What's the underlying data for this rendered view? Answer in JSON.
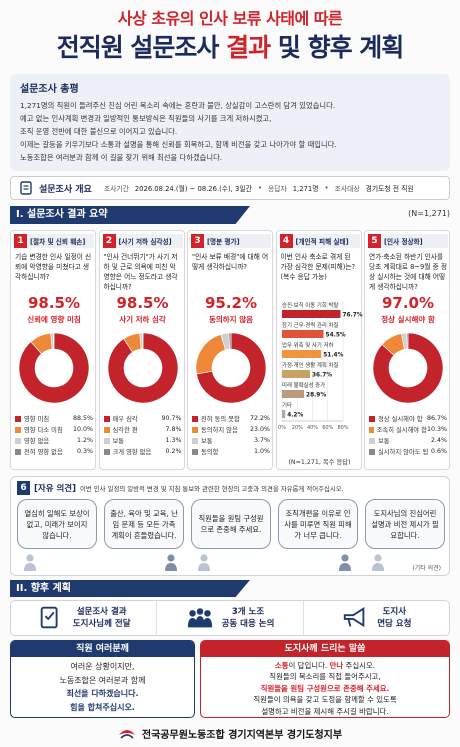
{
  "header": {
    "kicker": "사상 초유의 인사 보류 사태에 따른",
    "title": [
      {
        "text": "전직원 설문조사 ",
        "color": "#1c2a5c"
      },
      {
        "text": "결과",
        "color": "#d2232a"
      },
      {
        "text": " 및 ",
        "color": "#1c2a5c"
      },
      {
        "text": "향후 계획",
        "color": "#1c2a5c"
      }
    ]
  },
  "summary": {
    "title": "설문조사 총평",
    "lines": [
      "1,271명의 직원이 들려주신 진심 어린 목소리 속에는 혼란과 불안, 상실감이 고스란히 담겨 있었습니다.",
      "예고 없는 인사계획 변경과 일방적인 통보방식은 직원들의 사기를 크게 저하시켰고,",
      "조직 운영 전반에 대한 불신으로 이어지고 있습니다.",
      "이제는 갈등을 키우기보다 소통과 설명을 통해 신뢰를 회복하고, 함께 비전을 갖고 나아가야 할 때입니다.",
      "노동조합은 여러분과 함께 이 길을 찾기 위해 최선을 다하겠습니다."
    ]
  },
  "overview": {
    "title": "설문조사 개요",
    "items": [
      {
        "label": "조사기간",
        "value": "2026.08.24.(월) ~ 08.26.(수), 3일간"
      },
      {
        "label": "응답자",
        "value": "1,271명"
      },
      {
        "label": "조사대상",
        "value": "경기도청 전 직원"
      }
    ]
  },
  "section1": {
    "title": "I. 설문조사 결과 요약",
    "note": "(N=1,271)"
  },
  "chart_data": [
    {
      "type": "pie",
      "number": 1,
      "title": "[절차 및 신뢰 훼손]",
      "subtitle": "기습 변경한 인사 일정이 신뢰에 악영향을 미쳤다고 생각하십니까?",
      "highlight": "98.5%",
      "highlight_caption": "신뢰에 영향 미침",
      "categories": [
        "영향 미침",
        "영향 다소 미침",
        "영향 없음",
        "전혀 영향 없음"
      ],
      "values": [
        88.5,
        10.0,
        1.2,
        0.3
      ],
      "value_labels": [
        "88.5%",
        "10.0%",
        "1.2%",
        "0.3%"
      ],
      "colors": [
        "#c3232b",
        "#f0883a",
        "#cfcfcf",
        "#8a8a8a"
      ]
    },
    {
      "type": "pie",
      "number": 2,
      "title": "[사기 저하 심각성]",
      "subtitle": "\"인사 건너뛰기\"가 사기 저하 및 근로 의욕에 미친 악영향은 어느 정도라고 생각하십니까?",
      "highlight": "98.5%",
      "highlight_caption": "사기 저하 심각",
      "categories": [
        "매우 심각",
        "심각한 편",
        "보통",
        "크게 영향 없음"
      ],
      "values": [
        90.7,
        7.8,
        1.3,
        0.2
      ],
      "value_labels": [
        "90.7%",
        "7.8%",
        "1.3%",
        "0.2%"
      ],
      "colors": [
        "#c3232b",
        "#f0883a",
        "#cfcfcf",
        "#8a8a8a"
      ]
    },
    {
      "type": "pie",
      "number": 3,
      "title": "[명분 평가]",
      "subtitle": "\"인사 보류 배경\"에 대해 어떻게 생각하십니까?",
      "highlight": "95.2%",
      "highlight_caption": "동의하지 않음",
      "categories": [
        "전혀 동의 못함",
        "동의하지 않음",
        "보통",
        "동의함"
      ],
      "values": [
        72.2,
        23.0,
        3.7,
        1.0
      ],
      "value_labels": [
        "72.2%",
        "23.0%",
        "3.7%",
        "1.0%"
      ],
      "colors": [
        "#c3232b",
        "#f0883a",
        "#cfcfcf",
        "#8a8a8a"
      ]
    },
    {
      "type": "bar",
      "number": 4,
      "title": "[개인적 피해 실태]",
      "subtitle": "이번 인사 축소로 겪게 된 가장 심각한 문제(피해)는? (복수 응답 가능)",
      "categories": [
        "승진·보직 이동 기회 박탈",
        "장기 근무·경력 관리 차질",
        "업무 위축 및 사기 저하",
        "가정·개인 생활 계획 차질",
        "미래 불확실성 증가",
        "기타"
      ],
      "values": [
        76.7,
        54.5,
        51.4,
        36.7,
        28.9,
        4.2
      ],
      "value_labels": [
        "76.7%",
        "54.5%",
        "51.4%",
        "36.7%",
        "28.9%",
        "4.2%"
      ],
      "colors": [
        "#c3232b",
        "#e0553a",
        "#f0953e",
        "#c9a066",
        "#b89a7c",
        "#a8a8a8"
      ],
      "xlim": [
        0,
        80
      ],
      "xticks": [
        {
          "value": 0,
          "label": "0%"
        },
        {
          "value": 20,
          "label": "20%"
        },
        {
          "value": 40,
          "label": "40%"
        },
        {
          "value": 60,
          "label": "60%"
        },
        {
          "value": 80,
          "label": "80%"
        }
      ],
      "grid": true,
      "note": "(N=1,271, 복수 응답)"
    },
    {
      "type": "pie",
      "number": 5,
      "title": "[인사 정상화]",
      "subtitle": "연가·축소된 하반기 인사를 당초 계획대로 8~9월 중 정상 실시하는 것에 대해 어떻게 생각하십니까?",
      "highlight": "97.0%",
      "highlight_caption": "정상 실시해야 함",
      "categories": [
        "정상 실시해야 함",
        "조속히 실시해야 함",
        "보통",
        "실시하지 않아도 됨"
      ],
      "values": [
        86.7,
        10.3,
        2.4,
        0.6
      ],
      "value_labels": [
        "86.7%",
        "10.3%",
        "2.4%",
        "0.6%"
      ],
      "colors": [
        "#c3232b",
        "#f0883a",
        "#cfcfcf",
        "#8a8a8a"
      ]
    }
  ],
  "opinions": {
    "number": 6,
    "title": "[자유 의견]",
    "prompt": "이번 인사 일정의 일방적 변경 및 지침 통보와 관련한 현장의 고충과 의견을 자유롭게 적어주십시오.",
    "bubbles": [
      "열심히 일해도 보상이 없고, 미래가 보이지 않습니다.",
      "출산, 육아 및 교육, 난임 문제 등 모든 가족 계획이 흔들렸습니다.",
      "직원들을 원팀 구성원으로 존중해 주세요.",
      "조직개편을 이유로 인사를 미루면 직원 피해가 너무 큽니다.",
      "도지사님의 진심어린 설명과 비전 제시가 필요합니다."
    ],
    "note": "(기타 의견)"
  },
  "section2": {
    "title": "II. 향후 계획",
    "plans": [
      {
        "lines": [
          "설문조사 결과",
          "도지사님께 전달"
        ]
      },
      {
        "lines": [
          "3개 노조",
          "공동 대응 논의"
        ]
      },
      {
        "lines": [
          "도지사",
          "면담 요청"
        ]
      }
    ]
  },
  "messages": [
    {
      "title": "직원 여러분께",
      "color": "#1f3a6e",
      "lines": [
        [
          {
            "text": "여러운 상황이지만,"
          }
        ],
        [
          {
            "text": "노동조합은 여러분과 함께"
          }
        ],
        [
          {
            "text": "최선을 다하겠습니다.",
            "color": "#1f3a6e"
          }
        ],
        [
          {
            "text": "힘을 합쳐주십시오.",
            "color": "#1f3a6e"
          }
        ]
      ]
    },
    {
      "title": "도지사께 드리는 말씀",
      "color": "#c3232b",
      "lines": [
        [
          {
            "text": "소통",
            "color": "#d2232a"
          },
          {
            "text": "이 답입니다. "
          },
          {
            "text": "만나",
            "color": "#d2232a"
          },
          {
            "text": " 주십시오."
          }
        ],
        [
          {
            "text": "직원들의 목소리를 직접 들어주시고,"
          }
        ],
        [
          {
            "text": "직원들을 원팀 구성원으로 존중해 주세요.",
            "color": "#d2232a"
          }
        ],
        [
          {
            "text": "직원들이 의욕을 갖고 도정을 함께할 수 있도록"
          }
        ],
        [
          {
            "text": "설명하고 비전을 제시해 주시길 바랍니다."
          }
        ]
      ]
    }
  ],
  "footer": "전국공무원노동조합 경기지역본부 경기도청지부"
}
